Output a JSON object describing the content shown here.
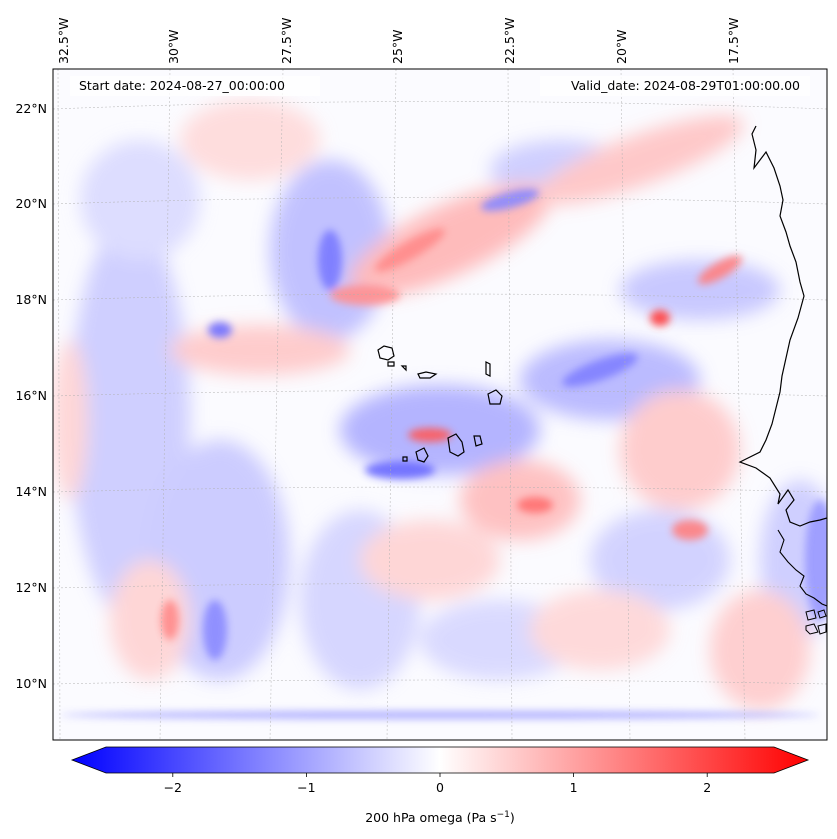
{
  "map": {
    "start_date": "Start date: 2024-08-27_00:00:00",
    "valid_date": "Valid_date: 2024-08-29T01:00:00.00",
    "lon_labels": [
      "32.5°W",
      "30°W",
      "27.5°W",
      "25°W",
      "22.5°W",
      "20°W",
      "17.5°W"
    ],
    "lat_labels": [
      "22°N",
      "20°N",
      "18°N",
      "16°N",
      "14°N",
      "12°N",
      "10°N"
    ],
    "field_colormap": [
      "#0000ff",
      "#ffffff",
      "#ff0000"
    ]
  },
  "colorbar": {
    "label_main": "200 hPa omega (Pa s",
    "label_sup": "−1",
    "label_end": ")",
    "ticks": [
      "−2",
      "−1",
      "0",
      "1",
      "2"
    ],
    "tick_values": [
      -2,
      -1,
      0,
      1,
      2
    ],
    "range": [
      -2.75,
      2.75
    ]
  }
}
